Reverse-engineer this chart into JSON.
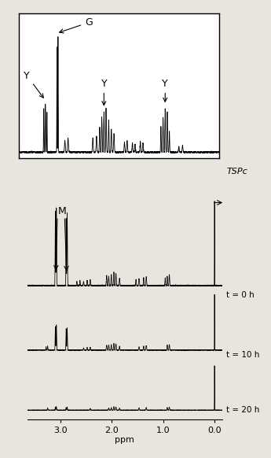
{
  "background_color": "#e8e4de",
  "inset_bg": "#ffffff",
  "line_color": "#000000",
  "xlabel": "ppm",
  "xticks": [
    3.0,
    2.0,
    1.0,
    0.0
  ],
  "xtick_labels": [
    "3.0",
    "2.0",
    "1.0",
    "0.0"
  ],
  "xlim_high": 3.65,
  "xlim_low": -0.15,
  "t0_label": "t = 0 h",
  "t10_label": "t = 10 h",
  "t20_label": "t = 20 h",
  "tspc_label": "TSPc",
  "G_label": "G",
  "Y_label": "Y",
  "M_label": "M"
}
